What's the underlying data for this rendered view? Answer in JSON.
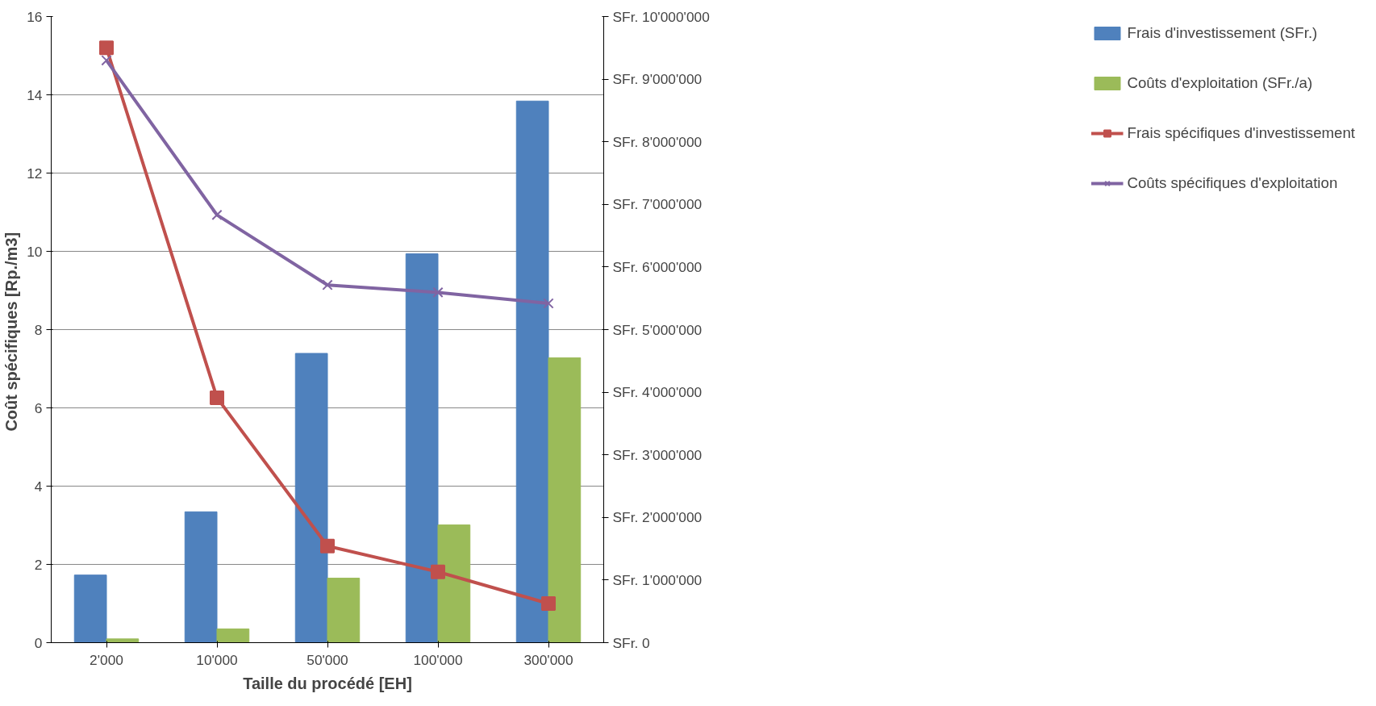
{
  "chart_data": {
    "type": "bar",
    "xlabel": "Taille du procédé [EH]",
    "ylabel": "Coût spécifiques  [Rp./m3]",
    "categories": [
      "2'000",
      "10'000",
      "50'000",
      "100'000",
      "300'000"
    ],
    "ylim": [
      0,
      16
    ],
    "yticks": [
      0,
      2,
      4,
      6,
      8,
      10,
      12,
      14,
      16
    ],
    "y2lim": [
      0,
      10000000
    ],
    "y2ticks": [
      {
        "value": 0,
        "label": "SFr. 0"
      },
      {
        "value": 1000000,
        "label": "SFr. 1'000'000"
      },
      {
        "value": 2000000,
        "label": "SFr. 2'000'000"
      },
      {
        "value": 3000000,
        "label": "SFr. 3'000'000"
      },
      {
        "value": 4000000,
        "label": "SFr. 4'000'000"
      },
      {
        "value": 5000000,
        "label": "SFr. 5'000'000"
      },
      {
        "value": 6000000,
        "label": "SFr. 6'000'000"
      },
      {
        "value": 7000000,
        "label": "SFr. 7'000'000"
      },
      {
        "value": 8000000,
        "label": "SFr. 8'000'000"
      },
      {
        "value": 9000000,
        "label": "SFr. 9'000'000"
      },
      {
        "value": 10000000,
        "label": "SFr. 10'000'000"
      }
    ],
    "grid": "y",
    "legend": "right",
    "series": [
      {
        "name": "Frais d'investissement (SFr.)",
        "axis": "y2",
        "color": "#4f81bd",
        "values": [
          1080000,
          2090000,
          4620000,
          6210000,
          8650000
        ]
      },
      {
        "name": "Coûts d'exploitation (SFr./a)",
        "axis": "y2",
        "color": "#9bbb59",
        "values": [
          60000,
          220000,
          1030000,
          1880000,
          4550000
        ]
      },
      {
        "name": "Frais spécifiques d'investissement",
        "type": "line",
        "marker": "square",
        "color": "#c0504d",
        "values": [
          15.2,
          6.26,
          2.47,
          1.81,
          1.0
        ]
      },
      {
        "name": "Coûts spécifiques d'exploitation",
        "type": "line",
        "marker": "cross",
        "color": "#8064a2",
        "values": [
          14.88,
          10.93,
          9.14,
          8.95,
          8.67
        ]
      }
    ]
  }
}
